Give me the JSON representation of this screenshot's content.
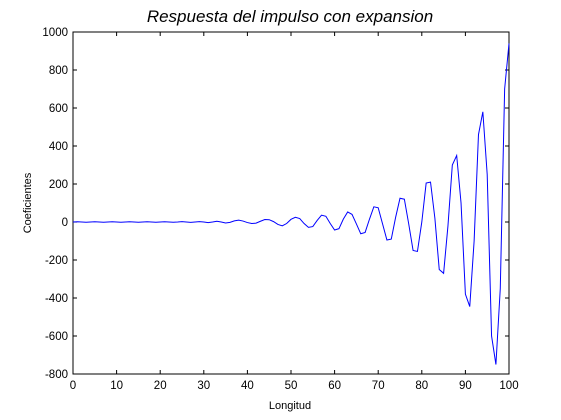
{
  "chart_data": {
    "type": "line",
    "title": "Respuesta del impulso con expansion",
    "xlabel": "Longitud",
    "ylabel": "Coeficientes",
    "xlim": [
      0,
      100
    ],
    "ylim": [
      -800,
      1000
    ],
    "xticks": [
      0,
      10,
      20,
      30,
      40,
      50,
      60,
      70,
      80,
      90,
      100
    ],
    "yticks": [
      -800,
      -600,
      -400,
      -200,
      0,
      200,
      400,
      600,
      800,
      1000
    ],
    "grid": false,
    "line_color": "#0000ff",
    "series": [
      {
        "x": [
          0,
          1,
          2,
          3,
          4,
          5,
          6,
          7,
          8,
          9,
          10,
          11,
          12,
          13,
          14,
          15,
          16,
          17,
          18,
          19,
          20,
          21,
          22,
          23,
          24,
          25,
          26,
          27,
          28,
          29,
          30,
          31,
          32,
          33,
          34,
          35,
          36,
          37,
          38,
          39,
          40,
          41,
          42,
          43,
          44,
          45,
          46,
          47,
          48,
          49,
          50,
          51,
          52,
          53,
          54,
          55,
          56,
          57,
          58,
          59,
          60,
          61,
          62,
          63,
          64,
          65,
          66,
          67,
          68,
          69,
          70,
          71,
          72,
          73,
          74,
          75,
          76,
          77,
          78,
          79,
          80,
          81,
          82,
          83,
          84,
          85,
          86,
          87,
          88,
          89,
          90,
          91,
          92,
          93,
          94,
          95,
          96,
          97,
          98,
          99,
          100
        ],
        "values": [
          0,
          1,
          0,
          -1,
          0,
          1,
          0,
          -1,
          0,
          1,
          0,
          -1,
          0,
          1,
          0,
          -1,
          0,
          1,
          0,
          -1,
          0,
          1,
          0,
          -1,
          0,
          2,
          0,
          -2,
          0,
          2,
          0,
          -3,
          0,
          4,
          0,
          -5,
          -2,
          6,
          10,
          5,
          -3,
          -8,
          -6,
          4,
          13,
          12,
          2,
          -13,
          -20,
          -8,
          14,
          25,
          18,
          -8,
          -28,
          -24,
          8,
          36,
          30,
          -8,
          -42,
          -35,
          15,
          53,
          40,
          -10,
          -62,
          -55,
          15,
          80,
          75,
          -10,
          -95,
          -90,
          25,
          125,
          120,
          -10,
          -150,
          -155,
          0,
          205,
          210,
          20,
          -250,
          -270,
          -20,
          300,
          350,
          100,
          -380,
          -445,
          -100,
          460,
          580,
          250,
          -600,
          -750,
          -350,
          700,
          940
        ]
      }
    ]
  }
}
